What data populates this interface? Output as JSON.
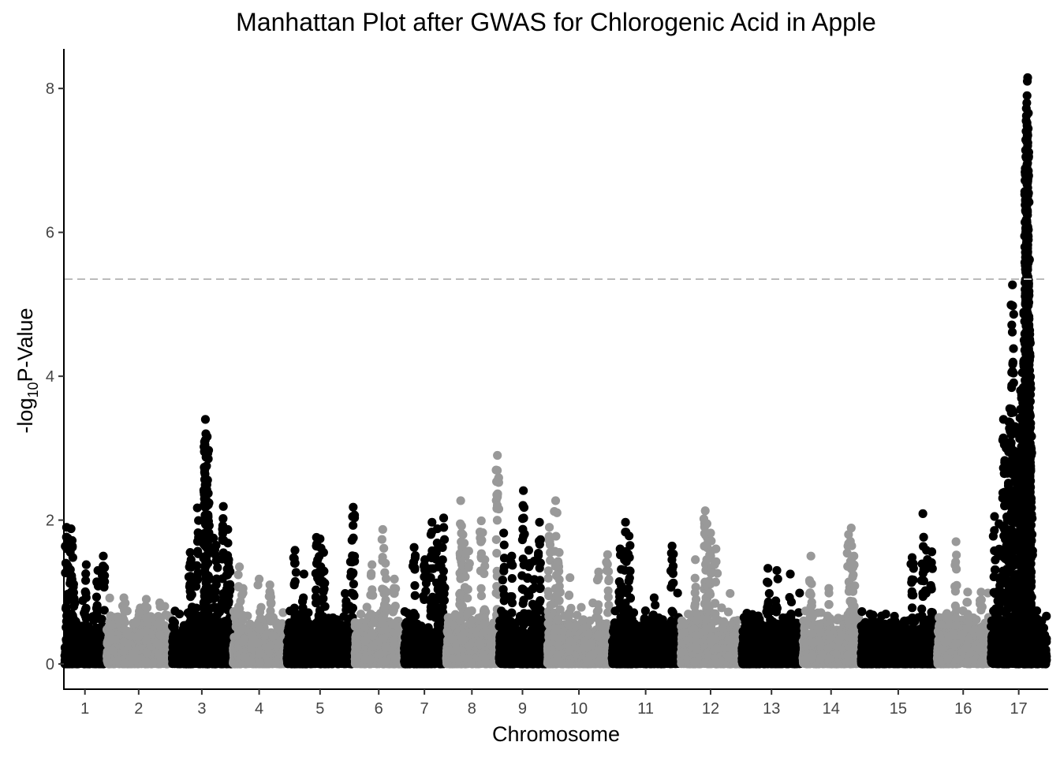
{
  "chart_data": {
    "type": "scatter",
    "subtype": "manhattan",
    "title": "Manhattan Plot after GWAS for Chlorogenic Acid in Apple",
    "xlabel": "Chromosome",
    "ylabel": {
      "prefix": "-log",
      "subscript": "10",
      "suffix": "P-Value"
    },
    "ylim": [
      -0.35,
      8.55
    ],
    "yticks": [
      0,
      2,
      4,
      6,
      8
    ],
    "threshold": 5.35,
    "grid": false,
    "legend": "none",
    "colors": {
      "odd": "#000000",
      "even": "#999999",
      "threshold": "#BBBBBB"
    },
    "chromosomes": [
      {
        "label": "1",
        "start": 0,
        "length": 47,
        "max": 2.05,
        "peaks": [
          [
            3,
            1.9
          ],
          [
            8,
            1.88
          ],
          [
            10,
            1.48
          ],
          [
            25,
            1.38
          ],
          [
            38,
            1.3
          ],
          [
            44,
            1.5
          ]
        ]
      },
      {
        "label": "2",
        "start": 47,
        "length": 73,
        "max": 1.05,
        "peaks": [
          [
            20,
            0.92
          ],
          [
            45,
            0.9
          ],
          [
            60,
            0.85
          ]
        ]
      },
      {
        "label": "3",
        "start": 120,
        "length": 68,
        "max": 3.4,
        "peaks": [
          [
            21,
            1.55
          ],
          [
            22,
            1.45
          ],
          [
            29,
            2.17
          ],
          [
            38,
            3.4
          ],
          [
            38.5,
            3.2
          ],
          [
            37.5,
            3.05
          ],
          [
            40,
            3.16
          ],
          [
            42,
            2.24
          ],
          [
            47,
            1.75
          ],
          [
            50,
            1.65
          ],
          [
            58,
            2.19
          ],
          [
            63,
            1.87
          ],
          [
            64,
            1.45
          ],
          [
            65,
            1.28
          ]
        ]
      },
      {
        "label": "4",
        "start": 188,
        "length": 60,
        "max": 1.35,
        "peaks": [
          [
            8,
            1.35
          ],
          [
            12,
            1.05
          ],
          [
            30,
            1.18
          ],
          [
            42,
            1.1
          ]
        ]
      },
      {
        "label": "5",
        "start": 248,
        "length": 76,
        "max": 2.18,
        "peaks": [
          [
            10,
            1.58
          ],
          [
            20,
            1.25
          ],
          [
            34,
            1.76
          ],
          [
            38,
            1.74
          ],
          [
            42,
            1.55
          ],
          [
            66,
            0.98
          ],
          [
            75,
            2.18
          ],
          [
            72,
            1.42
          ]
        ]
      },
      {
        "label": "6",
        "start": 324,
        "length": 55,
        "max": 1.87,
        "peaks": [
          [
            20,
            1.38
          ],
          [
            32,
            1.87
          ],
          [
            35,
            1.4
          ],
          [
            45,
            1.18
          ]
        ]
      },
      {
        "label": "7",
        "start": 379,
        "length": 47,
        "max": 2.03,
        "peaks": [
          [
            12,
            1.62
          ],
          [
            24,
            1.45
          ],
          [
            32,
            1.97
          ],
          [
            38,
            1.88
          ],
          [
            45,
            2.03
          ],
          [
            42,
            1.36
          ]
        ]
      },
      {
        "label": "8",
        "start": 426,
        "length": 59,
        "max": 2.9,
        "peaks": [
          [
            17,
            2.27
          ],
          [
            18,
            1.92
          ],
          [
            21,
            1.68
          ],
          [
            26,
            1.57
          ],
          [
            40,
            1.99
          ],
          [
            58,
            2.9
          ],
          [
            44,
            1.45
          ]
        ]
      },
      {
        "label": "9",
        "start": 485,
        "length": 54,
        "max": 2.41,
        "peaks": [
          [
            6,
            1.82
          ],
          [
            15,
            1.5
          ],
          [
            28,
            2.41
          ],
          [
            34,
            1.58
          ],
          [
            46,
            1.97
          ],
          [
            40,
            1.43
          ]
        ]
      },
      {
        "label": "10",
        "start": 539,
        "length": 72,
        "max": 2.27,
        "peaks": [
          [
            3,
            1.9
          ],
          [
            10,
            2.27
          ],
          [
            14,
            1.55
          ],
          [
            26,
            1.2
          ],
          [
            58,
            1.28
          ],
          [
            68,
            1.52
          ]
        ]
      },
      {
        "label": "11",
        "start": 611,
        "length": 77,
        "max": 1.97,
        "peaks": [
          [
            10,
            1.6
          ],
          [
            16,
            1.97
          ],
          [
            20,
            1.78
          ],
          [
            48,
            0.92
          ],
          [
            68,
            1.64
          ]
        ]
      },
      {
        "label": "12",
        "start": 688,
        "length": 68,
        "max": 2.13,
        "peaks": [
          [
            17,
            1.45
          ],
          [
            28,
            2.13
          ],
          [
            30,
            1.95
          ],
          [
            34,
            1.82
          ],
          [
            40,
            1.6
          ]
        ]
      },
      {
        "label": "13",
        "start": 756,
        "length": 68,
        "max": 1.33,
        "peaks": [
          [
            30,
            1.33
          ],
          [
            40,
            1.3
          ],
          [
            55,
            1.25
          ]
        ]
      },
      {
        "label": "14",
        "start": 824,
        "length": 65,
        "max": 1.89,
        "peaks": [
          [
            10,
            1.5
          ],
          [
            30,
            1.05
          ],
          [
            52,
            1.8
          ],
          [
            55,
            1.89
          ],
          [
            58,
            1.5
          ]
        ]
      },
      {
        "label": "15",
        "start": 889,
        "length": 85,
        "max": 2.09,
        "peaks": [
          [
            58,
            1.48
          ],
          [
            70,
            2.09
          ],
          [
            74,
            1.58
          ],
          [
            80,
            1.56
          ]
        ]
      },
      {
        "label": "16",
        "start": 974,
        "length": 60,
        "max": 1.7,
        "peaks": [
          [
            22,
            1.7
          ],
          [
            35,
            1.0
          ],
          [
            50,
            1.0
          ]
        ]
      },
      {
        "label": "17",
        "start": 1034,
        "length": 64,
        "max": 2.0,
        "peaks": [
          [
            5,
            2.05
          ],
          [
            10,
            1.95
          ],
          [
            15,
            3.4
          ],
          [
            18,
            3.0
          ],
          [
            22,
            3.55
          ],
          [
            25,
            2.9
          ],
          [
            28,
            3.3
          ],
          [
            30,
            3.2
          ],
          [
            32,
            2.8
          ],
          [
            34,
            3.8
          ],
          [
            36,
            4.05
          ],
          [
            38,
            4.5
          ],
          [
            39,
            5.3
          ],
          [
            40,
            7.05
          ],
          [
            40.3,
            7.55
          ],
          [
            40.6,
            7.62
          ],
          [
            41,
            7.8
          ],
          [
            41.3,
            7.9
          ],
          [
            41.6,
            8.1
          ],
          [
            42,
            8.15
          ],
          [
            40.8,
            5.9
          ],
          [
            41.5,
            6.05
          ],
          [
            42.5,
            6.52
          ],
          [
            42.2,
            5.95
          ],
          [
            43,
            5.25
          ],
          [
            42.8,
            5.15
          ],
          [
            44,
            5.62
          ],
          [
            43.5,
            4.2
          ],
          [
            44.5,
            3.9
          ],
          [
            45,
            3.65
          ],
          [
            43.8,
            3.3
          ],
          [
            45,
            2.8
          ],
          [
            46,
            2.3
          ],
          [
            20,
            2.3
          ],
          [
            25,
            5.27
          ]
        ]
      }
    ]
  }
}
